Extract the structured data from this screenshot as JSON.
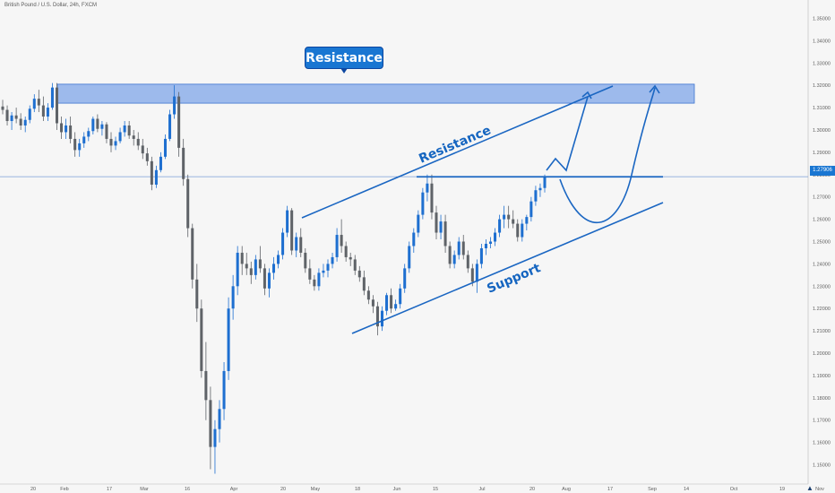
{
  "header": {
    "symbol": "British Pound / U.S. Dollar, 24h, FXCM"
  },
  "chart_data": {
    "type": "candlestick",
    "instrument": "GBP/USD",
    "timeframe": "24h",
    "source": "FXCM",
    "ylim": [
      1.145,
      1.355
    ],
    "y_ticks": [
      "1.15000",
      "1.16000",
      "1.17000",
      "1.18000",
      "1.19000",
      "1.20000",
      "1.21000",
      "1.22000",
      "1.23000",
      "1.24000",
      "1.25000",
      "1.26000",
      "1.27000",
      "1.28000",
      "1.29000",
      "1.30000",
      "1.31000",
      "1.32000",
      "1.33000",
      "1.34000",
      "1.35000"
    ],
    "x_ticks": [
      "20",
      "Feb",
      "17",
      "Mar",
      "16",
      "Apr",
      "20",
      "May",
      "18",
      "Jun",
      "15",
      "Jul",
      "20",
      "Aug",
      "17",
      "Sep",
      "14",
      "Oct",
      "19",
      "Nov"
    ],
    "last_price": "1.27906",
    "last_price_value": 1.27906,
    "candles": [
      [
        1.3105,
        1.3135,
        1.307,
        1.309
      ],
      [
        1.309,
        1.311,
        1.302,
        1.304
      ],
      [
        1.304,
        1.308,
        1.3,
        1.3065
      ],
      [
        1.3065,
        1.31,
        1.303,
        1.305
      ],
      [
        1.305,
        1.3075,
        1.3,
        1.302
      ],
      [
        1.302,
        1.306,
        1.299,
        1.3045
      ],
      [
        1.3045,
        1.311,
        1.303,
        1.3095
      ],
      [
        1.3095,
        1.316,
        1.308,
        1.314
      ],
      [
        1.314,
        1.318,
        1.308,
        1.311
      ],
      [
        1.311,
        1.315,
        1.304,
        1.306
      ],
      [
        1.306,
        1.312,
        1.304,
        1.31
      ],
      [
        1.31,
        1.321,
        1.309,
        1.319
      ],
      [
        1.319,
        1.321,
        1.3,
        1.303
      ],
      [
        1.303,
        1.306,
        1.296,
        1.299
      ],
      [
        1.299,
        1.305,
        1.296,
        1.302
      ],
      [
        1.302,
        1.306,
        1.294,
        1.296
      ],
      [
        1.296,
        1.299,
        1.288,
        1.291
      ],
      [
        1.291,
        1.296,
        1.288,
        1.294
      ],
      [
        1.294,
        1.299,
        1.292,
        1.297
      ],
      [
        1.297,
        1.301,
        1.295,
        1.2995
      ],
      [
        1.2995,
        1.306,
        1.298,
        1.305
      ],
      [
        1.305,
        1.307,
        1.299,
        1.3005
      ],
      [
        1.3005,
        1.304,
        1.2975,
        1.3025
      ],
      [
        1.3025,
        1.3035,
        1.294,
        1.296
      ],
      [
        1.296,
        1.299,
        1.29,
        1.293
      ],
      [
        1.293,
        1.297,
        1.291,
        1.295
      ],
      [
        1.295,
        1.301,
        1.294,
        1.299
      ],
      [
        1.299,
        1.304,
        1.297,
        1.302
      ],
      [
        1.302,
        1.304,
        1.296,
        1.2975
      ],
      [
        1.2975,
        1.3,
        1.293,
        1.296
      ],
      [
        1.296,
        1.299,
        1.291,
        1.293
      ],
      [
        1.293,
        1.296,
        1.287,
        1.2895
      ],
      [
        1.2895,
        1.292,
        1.284,
        1.286
      ],
      [
        1.286,
        1.288,
        1.273,
        1.2755
      ],
      [
        1.2755,
        1.284,
        1.274,
        1.282
      ],
      [
        1.282,
        1.29,
        1.281,
        1.288
      ],
      [
        1.288,
        1.298,
        1.287,
        1.296
      ],
      [
        1.296,
        1.309,
        1.295,
        1.307
      ],
      [
        1.307,
        1.32,
        1.305,
        1.315
      ],
      [
        1.315,
        1.317,
        1.288,
        1.292
      ],
      [
        1.292,
        1.296,
        1.275,
        1.278
      ],
      [
        1.278,
        1.28,
        1.252,
        1.256
      ],
      [
        1.256,
        1.258,
        1.229,
        1.233
      ],
      [
        1.233,
        1.24,
        1.214,
        1.22
      ],
      [
        1.22,
        1.224,
        1.189,
        1.192
      ],
      [
        1.192,
        1.205,
        1.17,
        1.179
      ],
      [
        1.179,
        1.185,
        1.148,
        1.158
      ],
      [
        1.158,
        1.17,
        1.146,
        1.166
      ],
      [
        1.166,
        1.179,
        1.16,
        1.175
      ],
      [
        1.175,
        1.196,
        1.17,
        1.192
      ],
      [
        1.192,
        1.225,
        1.188,
        1.22
      ],
      [
        1.22,
        1.235,
        1.215,
        1.23
      ],
      [
        1.23,
        1.248,
        1.226,
        1.245
      ],
      [
        1.245,
        1.248,
        1.235,
        1.24
      ],
      [
        1.24,
        1.245,
        1.235,
        1.238
      ],
      [
        1.238,
        1.241,
        1.231,
        1.235
      ],
      [
        1.235,
        1.244,
        1.233,
        1.242
      ],
      [
        1.242,
        1.248,
        1.236,
        1.238
      ],
      [
        1.238,
        1.24,
        1.226,
        1.229
      ],
      [
        1.229,
        1.238,
        1.225,
        1.236
      ],
      [
        1.236,
        1.243,
        1.233,
        1.24
      ],
      [
        1.24,
        1.246,
        1.238,
        1.244
      ],
      [
        1.244,
        1.256,
        1.242,
        1.254
      ],
      [
        1.254,
        1.266,
        1.252,
        1.264
      ],
      [
        1.264,
        1.265,
        1.244,
        1.246
      ],
      [
        1.246,
        1.254,
        1.243,
        1.252
      ],
      [
        1.252,
        1.256,
        1.243,
        1.245
      ],
      [
        1.245,
        1.247,
        1.236,
        1.238
      ],
      [
        1.238,
        1.242,
        1.231,
        1.233
      ],
      [
        1.233,
        1.235,
        1.228,
        1.23
      ],
      [
        1.23,
        1.238,
        1.228,
        1.236
      ],
      [
        1.236,
        1.24,
        1.234,
        1.237
      ],
      [
        1.237,
        1.242,
        1.234,
        1.24
      ],
      [
        1.24,
        1.245,
        1.238,
        1.243
      ],
      [
        1.243,
        1.256,
        1.241,
        1.253
      ],
      [
        1.253,
        1.26,
        1.245,
        1.248
      ],
      [
        1.248,
        1.25,
        1.241,
        1.243
      ],
      [
        1.243,
        1.245,
        1.239,
        1.242
      ],
      [
        1.242,
        1.244,
        1.235,
        1.237
      ],
      [
        1.237,
        1.239,
        1.232,
        1.234
      ],
      [
        1.234,
        1.237,
        1.226,
        1.228
      ],
      [
        1.228,
        1.23,
        1.222,
        1.224
      ],
      [
        1.224,
        1.226,
        1.218,
        1.221
      ],
      [
        1.221,
        1.223,
        1.208,
        1.212
      ],
      [
        1.212,
        1.221,
        1.21,
        1.219
      ],
      [
        1.219,
        1.227,
        1.217,
        1.226
      ],
      [
        1.226,
        1.229,
        1.218,
        1.22
      ],
      [
        1.22,
        1.224,
        1.219,
        1.222
      ],
      [
        1.222,
        1.231,
        1.22,
        1.229
      ],
      [
        1.229,
        1.24,
        1.227,
        1.238
      ],
      [
        1.238,
        1.25,
        1.236,
        1.248
      ],
      [
        1.248,
        1.256,
        1.245,
        1.254
      ],
      [
        1.254,
        1.264,
        1.252,
        1.262
      ],
      [
        1.262,
        1.274,
        1.26,
        1.272
      ],
      [
        1.272,
        1.28,
        1.268,
        1.276
      ],
      [
        1.276,
        1.28,
        1.26,
        1.263
      ],
      [
        1.263,
        1.266,
        1.251,
        1.254
      ],
      [
        1.254,
        1.262,
        1.251,
        1.259
      ],
      [
        1.259,
        1.262,
        1.245,
        1.248
      ],
      [
        1.248,
        1.25,
        1.238,
        1.24
      ],
      [
        1.24,
        1.246,
        1.238,
        1.244
      ],
      [
        1.244,
        1.252,
        1.242,
        1.25
      ],
      [
        1.25,
        1.253,
        1.242,
        1.244
      ],
      [
        1.244,
        1.246,
        1.236,
        1.238
      ],
      [
        1.238,
        1.24,
        1.23,
        1.232
      ],
      [
        1.232,
        1.242,
        1.227,
        1.24
      ],
      [
        1.24,
        1.249,
        1.238,
        1.247
      ],
      [
        1.247,
        1.251,
        1.244,
        1.249
      ],
      [
        1.249,
        1.252,
        1.247,
        1.25
      ],
      [
        1.25,
        1.256,
        1.248,
        1.254
      ],
      [
        1.254,
        1.262,
        1.252,
        1.26
      ],
      [
        1.26,
        1.266,
        1.256,
        1.262
      ],
      [
        1.262,
        1.266,
        1.256,
        1.26
      ],
      [
        1.26,
        1.264,
        1.256,
        1.258
      ],
      [
        1.258,
        1.26,
        1.25,
        1.252
      ],
      [
        1.252,
        1.26,
        1.25,
        1.258
      ],
      [
        1.258,
        1.262,
        1.255,
        1.261
      ],
      [
        1.261,
        1.27,
        1.259,
        1.268
      ],
      [
        1.268,
        1.275,
        1.266,
        1.273
      ],
      [
        1.273,
        1.276,
        1.27,
        1.274
      ],
      [
        1.274,
        1.28,
        1.272,
        1.279
      ]
    ],
    "annotations": [
      {
        "type": "label",
        "text": "Resistance",
        "style": "callout"
      },
      {
        "type": "line_label",
        "text": "Resistance"
      },
      {
        "type": "line_label",
        "text": "Support"
      }
    ],
    "resistance_zone": [
      1.312,
      1.3205
    ],
    "horizontal_level": 1.279,
    "projection_points": [
      [
        1.287,
        1.3195
      ],
      [
        1.299,
        1.306
      ],
      [
        1.228,
        1.274
      ]
    ]
  }
}
